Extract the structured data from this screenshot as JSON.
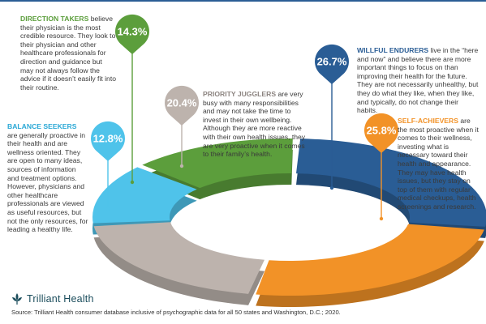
{
  "chart_data": {
    "type": "pie",
    "segments": [
      {
        "key": "willful",
        "label": "WILLFUL ENDURERS",
        "value": 26.7,
        "display": "26.7%",
        "color": "#2a5d95",
        "description": " live in the “here and now” and believe there are more important things to focus on than improving their health for the future. They are not necessarily unhealthy, but they do what they like, when they like, and typically, do not change their habits."
      },
      {
        "key": "self",
        "label": "SELF-ACHIEVERS",
        "value": 25.8,
        "display": "25.8%",
        "color": "#f29227",
        "description": " are the most proactive when it comes to their wellness, investing what is necessary toward their health and appearance. They may have health issues, but they stay on top of them with regular medical checkups, health screenings and research."
      },
      {
        "key": "priority",
        "label": "PRIORITY JUGGLERS",
        "value": 20.4,
        "display": "20.4%",
        "color": "#bdb3ad",
        "description": " are very busy with many responsibilities and may not take the time to invest in their own wellbeing. Although they are more reactive with their own health issues, they are very proactive when it comes to their family’s health."
      },
      {
        "key": "balance",
        "label": "BALANCE SEEKERS",
        "value": 12.8,
        "display": "12.8%",
        "color": "#4fc3ea",
        "description": " are generally proactive in their health and are wellness oriented. They are open to many ideas, sources of information and treatment options. However, physicians and other healthcare professionals are viewed as useful resources, but not the only resources, for leading a healthy life."
      },
      {
        "key": "direction",
        "label": "DIRECTION TAKERS",
        "value": 14.3,
        "display": "14.3%",
        "color": "#5c9e3c",
        "description": " believe their physician is the most credible resource. They look to their physician and other healthcare professionals for direction and guidance but may not always follow the advice if it doesn’t easily fit into their routine."
      }
    ],
    "title": "",
    "xlabel": "",
    "ylabel": ""
  },
  "brand": {
    "name": "Trilliant Health",
    "color": "#1b4d5c"
  },
  "source": "Source: Trilliant Health consumer database inclusive of psychographic data for all 50 states and Washington, D.C.; 2020.",
  "accent_line_color": "#2a5d95"
}
